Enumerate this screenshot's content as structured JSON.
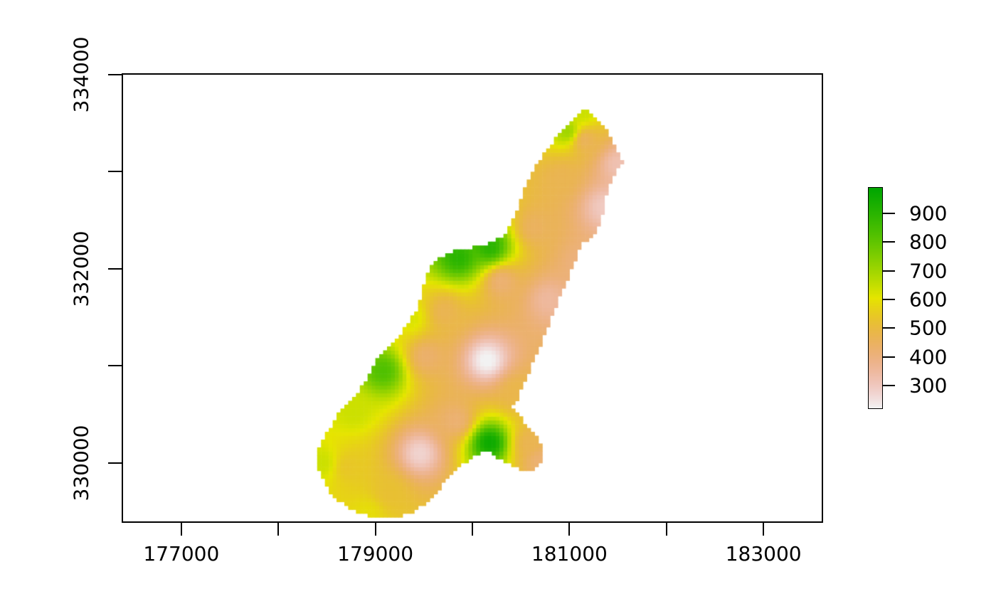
{
  "figure": {
    "background": "#FFFFFF",
    "axis_color": "#000000"
  },
  "chart_data": {
    "type": "heatmap",
    "title": "",
    "xlabel": "",
    "ylabel": "",
    "x_axis": {
      "range": [
        176400,
        183600
      ],
      "ticks": [
        {
          "value": 177000,
          "label": "177000"
        },
        {
          "value": 178000,
          "label": ""
        },
        {
          "value": 179000,
          "label": "179000"
        },
        {
          "value": 180000,
          "label": ""
        },
        {
          "value": 181000,
          "label": "181000"
        },
        {
          "value": 182000,
          "label": ""
        },
        {
          "value": 183000,
          "label": "183000"
        }
      ]
    },
    "y_axis": {
      "range": [
        329400,
        334000
      ],
      "ticks": [
        {
          "value": 330000,
          "label": "330000"
        },
        {
          "value": 331000,
          "label": ""
        },
        {
          "value": 332000,
          "label": "332000"
        },
        {
          "value": 333000,
          "label": ""
        },
        {
          "value": 334000,
          "label": "334000"
        }
      ]
    },
    "legend": {
      "zlim": [
        220,
        990
      ],
      "ticks": [
        {
          "value": 300,
          "label": "300"
        },
        {
          "value": 400,
          "label": "400"
        },
        {
          "value": 500,
          "label": "500"
        },
        {
          "value": 600,
          "label": "600"
        },
        {
          "value": 700,
          "label": "700"
        },
        {
          "value": 800,
          "label": "800"
        },
        {
          "value": 900,
          "label": "900"
        }
      ],
      "palette": "terrain-colors-reversed",
      "palette_hex_samples": {
        "low": "#F2F2F2",
        "mid": "#E6E600",
        "high": "#00A600"
      }
    },
    "grid_cell_size": 40,
    "idw_power": 2.5,
    "region_outline": [
      [
        181140,
        333650
      ],
      [
        181010,
        333490
      ],
      [
        180870,
        333360
      ],
      [
        180750,
        333210
      ],
      [
        180650,
        333050
      ],
      [
        180570,
        332900
      ],
      [
        180510,
        332750
      ],
      [
        180460,
        332590
      ],
      [
        180390,
        332440
      ],
      [
        180310,
        332330
      ],
      [
        180180,
        332260
      ],
      [
        180030,
        332230
      ],
      [
        179880,
        332200
      ],
      [
        179720,
        332150
      ],
      [
        179620,
        332070
      ],
      [
        179540,
        331970
      ],
      [
        179490,
        331820
      ],
      [
        179460,
        331660
      ],
      [
        179410,
        331560
      ],
      [
        179350,
        331450
      ],
      [
        179270,
        331350
      ],
      [
        179190,
        331260
      ],
      [
        179110,
        331170
      ],
      [
        179030,
        331080
      ],
      [
        178960,
        330970
      ],
      [
        178900,
        330850
      ],
      [
        178830,
        330750
      ],
      [
        178750,
        330660
      ],
      [
        178670,
        330580
      ],
      [
        178610,
        330500
      ],
      [
        178560,
        330400
      ],
      [
        178490,
        330310
      ],
      [
        178430,
        330200
      ],
      [
        178400,
        330090
      ],
      [
        178390,
        330000
      ],
      [
        178430,
        329900
      ],
      [
        178480,
        329810
      ],
      [
        178530,
        329700
      ],
      [
        178610,
        329620
      ],
      [
        178720,
        329540
      ],
      [
        178850,
        329480
      ],
      [
        178980,
        329430
      ],
      [
        179130,
        329420
      ],
      [
        179270,
        329450
      ],
      [
        179420,
        329510
      ],
      [
        179550,
        329620
      ],
      [
        179680,
        329760
      ],
      [
        179770,
        329870
      ],
      [
        179860,
        329950
      ],
      [
        179930,
        330010
      ],
      [
        180030,
        330070
      ],
      [
        180120,
        330110
      ],
      [
        180200,
        330100
      ],
      [
        180280,
        330040
      ],
      [
        180350,
        330000
      ],
      [
        180440,
        329950
      ],
      [
        180540,
        329930
      ],
      [
        180630,
        329940
      ],
      [
        180700,
        329980
      ],
      [
        180730,
        330050
      ],
      [
        180730,
        330110
      ],
      [
        180700,
        330190
      ],
      [
        180650,
        330280
      ],
      [
        180590,
        330350
      ],
      [
        180530,
        330430
      ],
      [
        180470,
        330510
      ],
      [
        180420,
        330580
      ],
      [
        180460,
        330640
      ],
      [
        180510,
        330770
      ],
      [
        180570,
        330900
      ],
      [
        180620,
        331020
      ],
      [
        180670,
        331130
      ],
      [
        180720,
        331260
      ],
      [
        180770,
        331390
      ],
      [
        180820,
        331510
      ],
      [
        180870,
        331630
      ],
      [
        180920,
        331760
      ],
      [
        180980,
        331890
      ],
      [
        181020,
        332000
      ],
      [
        181070,
        332110
      ],
      [
        181100,
        332180
      ],
      [
        181140,
        332260
      ],
      [
        181200,
        332300
      ],
      [
        181250,
        332360
      ],
      [
        181310,
        332450
      ],
      [
        181340,
        332560
      ],
      [
        181360,
        332670
      ],
      [
        181390,
        332780
      ],
      [
        181430,
        332890
      ],
      [
        181470,
        333000
      ],
      [
        181510,
        333060
      ],
      [
        181550,
        333110
      ],
      [
        181520,
        333160
      ],
      [
        181470,
        333260
      ],
      [
        181420,
        333370
      ],
      [
        181330,
        333490
      ],
      [
        181240,
        333580
      ]
    ],
    "control_points": [
      [
        179860,
        332120,
        900
      ],
      [
        180180,
        332230,
        900
      ],
      [
        179080,
        330950,
        830
      ],
      [
        180180,
        330210,
        960
      ],
      [
        180980,
        333420,
        700
      ],
      [
        181140,
        333620,
        640
      ],
      [
        178450,
        330000,
        640
      ],
      [
        178920,
        329490,
        590
      ],
      [
        178780,
        330540,
        640
      ],
      [
        179370,
        331500,
        620
      ],
      [
        180150,
        331060,
        215
      ],
      [
        179460,
        330100,
        275
      ],
      [
        181360,
        332640,
        295
      ],
      [
        180790,
        331680,
        350
      ],
      [
        181500,
        333080,
        320
      ],
      [
        180920,
        332940,
        470
      ],
      [
        180650,
        332430,
        450
      ],
      [
        179710,
        331560,
        470
      ],
      [
        178720,
        329960,
        540
      ],
      [
        179150,
        329690,
        520
      ],
      [
        179830,
        330440,
        420
      ],
      [
        180460,
        330740,
        480
      ],
      [
        180590,
        330200,
        470
      ],
      [
        180700,
        330030,
        420
      ],
      [
        181160,
        333330,
        460
      ],
      [
        180300,
        331870,
        420
      ],
      [
        179530,
        331100,
        430
      ],
      [
        181130,
        332060,
        400
      ]
    ]
  }
}
